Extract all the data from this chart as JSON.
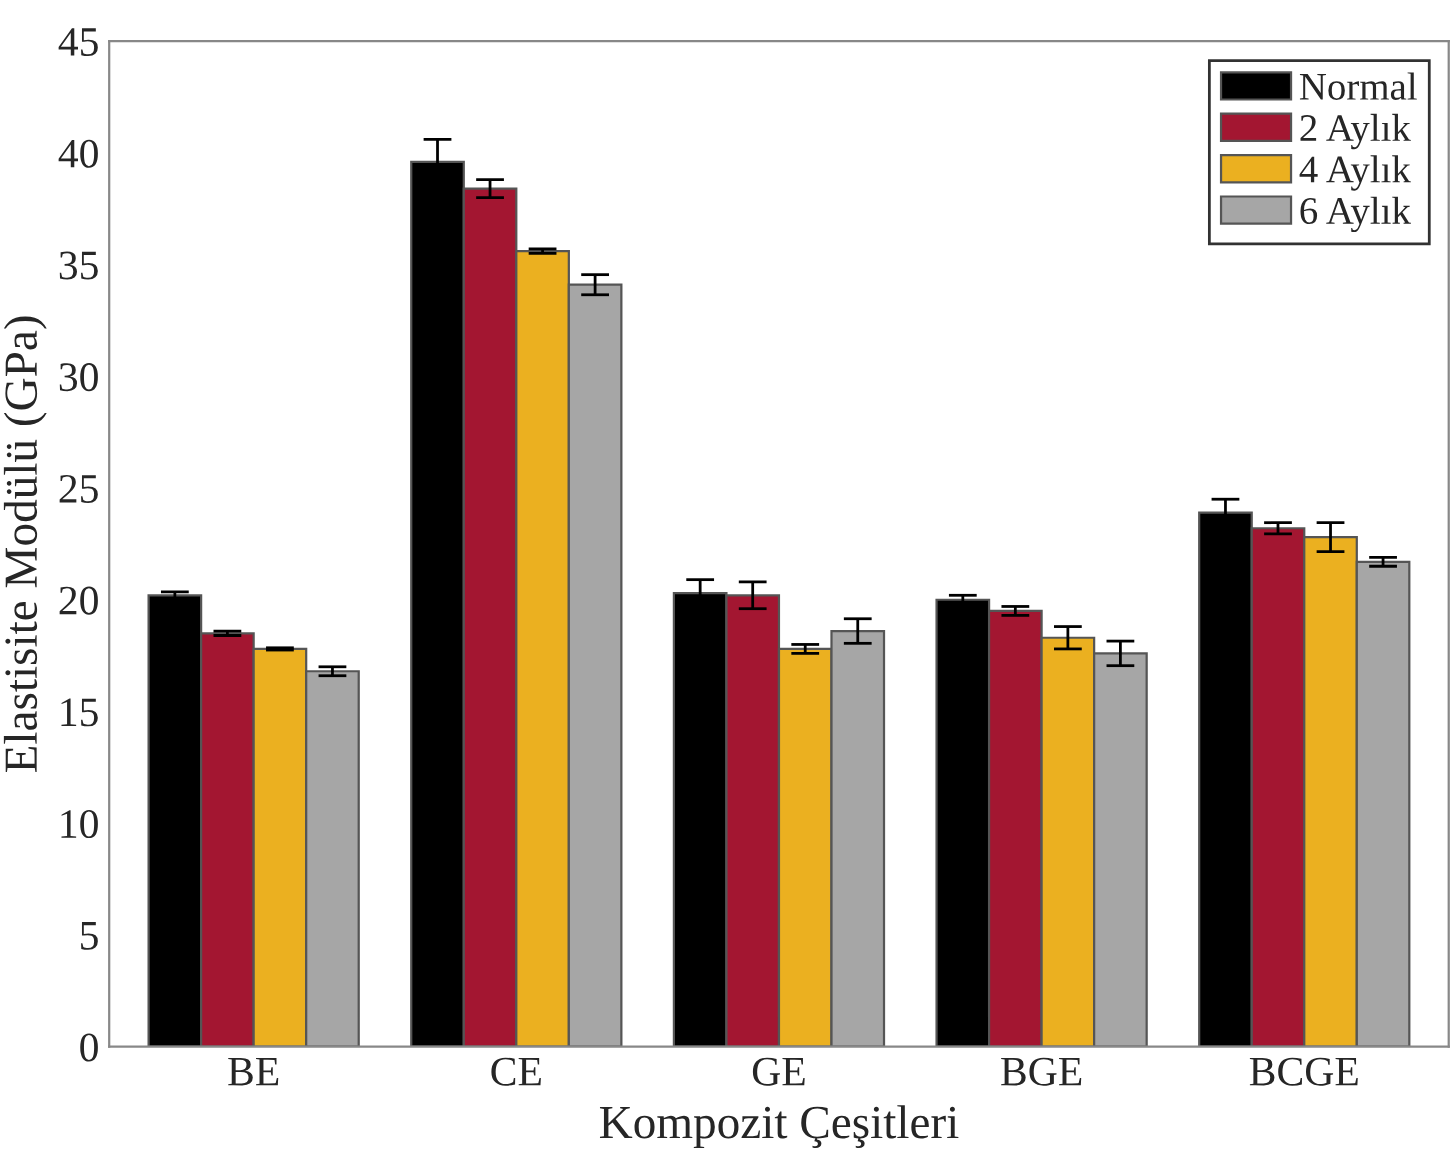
{
  "chart_data": {
    "type": "bar",
    "xlabel": "Kompozit Çeşitleri",
    "ylabel": "Elastisite Modülü (GPa)",
    "categories": [
      "BE",
      "CE",
      "GE",
      "BGE",
      "BCGE"
    ],
    "series": [
      {
        "name": "Normal",
        "color": "#000000",
        "values": [
          20.2,
          39.6,
          20.3,
          20.0,
          23.9
        ],
        "errors": [
          0.15,
          1.0,
          0.6,
          0.2,
          0.6
        ]
      },
      {
        "name": "2 Aylık",
        "color": "#a31631",
        "values": [
          18.5,
          38.4,
          20.2,
          19.5,
          23.2
        ],
        "errors": [
          0.1,
          0.4,
          0.6,
          0.2,
          0.25
        ]
      },
      {
        "name": "4 Aylık",
        "color": "#ebb020",
        "values": [
          17.8,
          35.6,
          17.8,
          18.3,
          22.8
        ],
        "errors": [
          0.05,
          0.1,
          0.2,
          0.5,
          0.65
        ]
      },
      {
        "name": "6 Aylık",
        "color": "#a6a6a6",
        "values": [
          16.8,
          34.1,
          18.6,
          17.6,
          21.7
        ],
        "errors": [
          0.2,
          0.45,
          0.55,
          0.55,
          0.2
        ]
      }
    ],
    "ylim": [
      0,
      45
    ],
    "yticks": [
      0,
      5,
      10,
      15,
      20,
      25,
      30,
      35,
      40,
      45
    ],
    "grid": false,
    "legend": "top right"
  }
}
